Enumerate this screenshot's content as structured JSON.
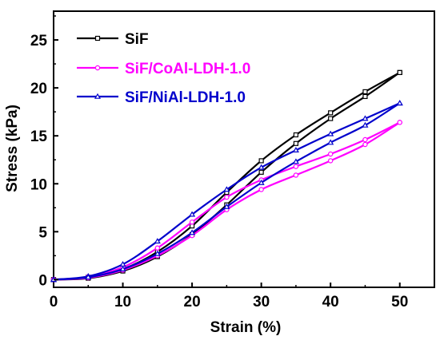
{
  "chart_data": {
    "type": "line",
    "title": "",
    "xlabel": "Strain (%)",
    "ylabel": "Stress (kPa)",
    "xlim": [
      0,
      55
    ],
    "ylim": [
      -0.8,
      28
    ],
    "xticks": [
      0,
      10,
      20,
      30,
      40,
      50
    ],
    "yticks": [
      0,
      5,
      10,
      15,
      20,
      25
    ],
    "grid": false,
    "legend_position": "top-left",
    "series": [
      {
        "name": "SiF",
        "color": "#000000",
        "marker": "square-open",
        "loading": [
          [
            0,
            0
          ],
          [
            5,
            0.25
          ],
          [
            10,
            1.1
          ],
          [
            15,
            2.9
          ],
          [
            20,
            5.6
          ],
          [
            25,
            9.1
          ],
          [
            30,
            12.4
          ],
          [
            35,
            15.1
          ],
          [
            40,
            17.4
          ],
          [
            45,
            19.6
          ],
          [
            50,
            21.6
          ]
        ],
        "unloading": [
          [
            50,
            21.6
          ],
          [
            45,
            19.1
          ],
          [
            40,
            16.8
          ],
          [
            35,
            14.2
          ],
          [
            30,
            11.2
          ],
          [
            25,
            7.8
          ],
          [
            20,
            4.7
          ],
          [
            15,
            2.4
          ],
          [
            10,
            0.9
          ],
          [
            5,
            0.15
          ],
          [
            0,
            0
          ]
        ]
      },
      {
        "name": "SiF/CoAl-LDH-1.0",
        "color": "#ff00ff",
        "marker": "circle-open",
        "loading": [
          [
            0,
            0
          ],
          [
            5,
            0.3
          ],
          [
            10,
            1.3
          ],
          [
            15,
            3.3
          ],
          [
            20,
            6.0
          ],
          [
            25,
            8.6
          ],
          [
            30,
            10.4
          ],
          [
            35,
            11.8
          ],
          [
            40,
            13.1
          ],
          [
            45,
            14.6
          ],
          [
            50,
            16.4
          ]
        ],
        "unloading": [
          [
            50,
            16.4
          ],
          [
            45,
            14.1
          ],
          [
            40,
            12.4
          ],
          [
            35,
            10.9
          ],
          [
            30,
            9.4
          ],
          [
            25,
            7.3
          ],
          [
            20,
            4.6
          ],
          [
            15,
            2.5
          ],
          [
            10,
            1.0
          ],
          [
            5,
            0.2
          ],
          [
            0,
            0
          ]
        ]
      },
      {
        "name": "SiF/NiAl-LDH-1.0",
        "color": "#0000cc",
        "marker": "triangle-open",
        "loading": [
          [
            0,
            0
          ],
          [
            5,
            0.35
          ],
          [
            10,
            1.6
          ],
          [
            15,
            4.0
          ],
          [
            20,
            6.8
          ],
          [
            25,
            9.4
          ],
          [
            30,
            11.7
          ],
          [
            35,
            13.5
          ],
          [
            40,
            15.2
          ],
          [
            45,
            16.8
          ],
          [
            50,
            18.4
          ]
        ],
        "unloading": [
          [
            50,
            18.4
          ],
          [
            45,
            16.1
          ],
          [
            40,
            14.3
          ],
          [
            35,
            12.3
          ],
          [
            30,
            10.1
          ],
          [
            25,
            7.6
          ],
          [
            20,
            4.9
          ],
          [
            15,
            2.7
          ],
          [
            10,
            1.1
          ],
          [
            5,
            0.25
          ],
          [
            0,
            0
          ]
        ]
      }
    ]
  }
}
